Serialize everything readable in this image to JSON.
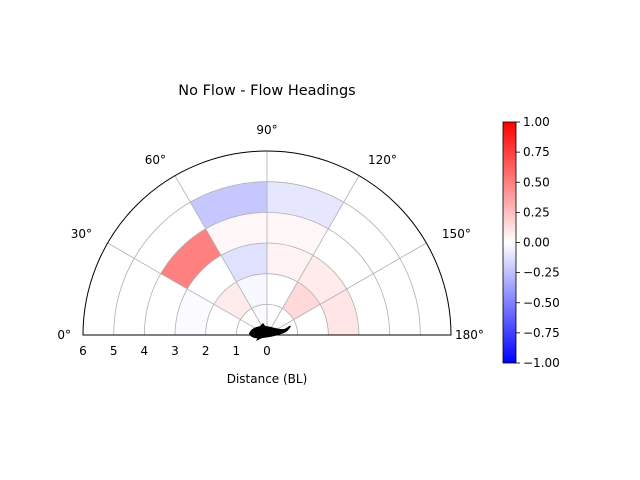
{
  "chart_data": {
    "type": "heatmap",
    "projection": "polar-half",
    "title": "No Flow - Flow Headings",
    "xlabel": "Distance (BL)",
    "angle_ticks": [
      "0°",
      "30°",
      "60°",
      "90°",
      "120°",
      "150°",
      "180°"
    ],
    "radial_ticks": [
      "6",
      "5",
      "4",
      "3",
      "2",
      "1",
      "0"
    ],
    "radial_max": 6,
    "grid": true,
    "colormap": "bwr",
    "color_range": [
      -1.0,
      1.0
    ],
    "colorbar_ticks": [
      "1.00",
      "0.75",
      "0.50",
      "0.25",
      "0.00",
      "−0.25",
      "−0.50",
      "−0.75",
      "−1.00"
    ],
    "colorbar_tick_values": [
      1.0,
      0.75,
      0.5,
      0.25,
      0.0,
      -0.25,
      -0.5,
      -0.75,
      -1.0
    ],
    "cells": [
      {
        "theta": [
          0,
          30
        ],
        "r": [
          0,
          1
        ],
        "value": 0.0
      },
      {
        "theta": [
          30,
          60
        ],
        "r": [
          0,
          1
        ],
        "value": 0.0
      },
      {
        "theta": [
          60,
          90
        ],
        "r": [
          0,
          1
        ],
        "value": -0.02
      },
      {
        "theta": [
          90,
          120
        ],
        "r": [
          0,
          1
        ],
        "value": 0.0
      },
      {
        "theta": [
          120,
          150
        ],
        "r": [
          0,
          1
        ],
        "value": 0.0
      },
      {
        "theta": [
          150,
          180
        ],
        "r": [
          0,
          1
        ],
        "value": 0.0
      },
      {
        "theta": [
          0,
          30
        ],
        "r": [
          1,
          2
        ],
        "value": 0.0
      },
      {
        "theta": [
          30,
          60
        ],
        "r": [
          1,
          2
        ],
        "value": 0.08
      },
      {
        "theta": [
          60,
          90
        ],
        "r": [
          1,
          2
        ],
        "value": -0.03
      },
      {
        "theta": [
          90,
          120
        ],
        "r": [
          1,
          2
        ],
        "value": 0.0
      },
      {
        "theta": [
          120,
          150
        ],
        "r": [
          1,
          2
        ],
        "value": 0.15
      },
      {
        "theta": [
          150,
          180
        ],
        "r": [
          1,
          2
        ],
        "value": 0.0
      },
      {
        "theta": [
          0,
          30
        ],
        "r": [
          2,
          3
        ],
        "value": -0.02
      },
      {
        "theta": [
          30,
          60
        ],
        "r": [
          2,
          3
        ],
        "value": 0.0
      },
      {
        "theta": [
          60,
          90
        ],
        "r": [
          2,
          3
        ],
        "value": -0.12
      },
      {
        "theta": [
          90,
          120
        ],
        "r": [
          2,
          3
        ],
        "value": 0.05
      },
      {
        "theta": [
          120,
          150
        ],
        "r": [
          2,
          3
        ],
        "value": 0.08
      },
      {
        "theta": [
          150,
          180
        ],
        "r": [
          2,
          3
        ],
        "value": 0.1
      },
      {
        "theta": [
          0,
          30
        ],
        "r": [
          3,
          4
        ],
        "value": 0.0
      },
      {
        "theta": [
          30,
          60
        ],
        "r": [
          3,
          4
        ],
        "value": 0.5
      },
      {
        "theta": [
          60,
          90
        ],
        "r": [
          3,
          4
        ],
        "value": 0.03
      },
      {
        "theta": [
          90,
          120
        ],
        "r": [
          3,
          4
        ],
        "value": 0.03
      },
      {
        "theta": [
          120,
          150
        ],
        "r": [
          3,
          4
        ],
        "value": 0.0
      },
      {
        "theta": [
          150,
          180
        ],
        "r": [
          3,
          4
        ],
        "value": 0.0
      },
      {
        "theta": [
          0,
          30
        ],
        "r": [
          4,
          5
        ],
        "value": 0.0
      },
      {
        "theta": [
          30,
          60
        ],
        "r": [
          4,
          5
        ],
        "value": 0.0
      },
      {
        "theta": [
          60,
          90
        ],
        "r": [
          4,
          5
        ],
        "value": -0.22
      },
      {
        "theta": [
          90,
          120
        ],
        "r": [
          4,
          5
        ],
        "value": -0.1
      },
      {
        "theta": [
          120,
          150
        ],
        "r": [
          4,
          5
        ],
        "value": 0.0
      },
      {
        "theta": [
          150,
          180
        ],
        "r": [
          4,
          5
        ],
        "value": 0.0
      },
      {
        "theta": [
          0,
          30
        ],
        "r": [
          5,
          6
        ],
        "value": 0.0
      },
      {
        "theta": [
          30,
          60
        ],
        "r": [
          5,
          6
        ],
        "value": 0.0
      },
      {
        "theta": [
          60,
          90
        ],
        "r": [
          5,
          6
        ],
        "value": 0.0
      },
      {
        "theta": [
          90,
          120
        ],
        "r": [
          5,
          6
        ],
        "value": 0.0
      },
      {
        "theta": [
          120,
          150
        ],
        "r": [
          5,
          6
        ],
        "value": 0.0
      },
      {
        "theta": [
          150,
          180
        ],
        "r": [
          5,
          6
        ],
        "value": 0.0
      }
    ]
  }
}
